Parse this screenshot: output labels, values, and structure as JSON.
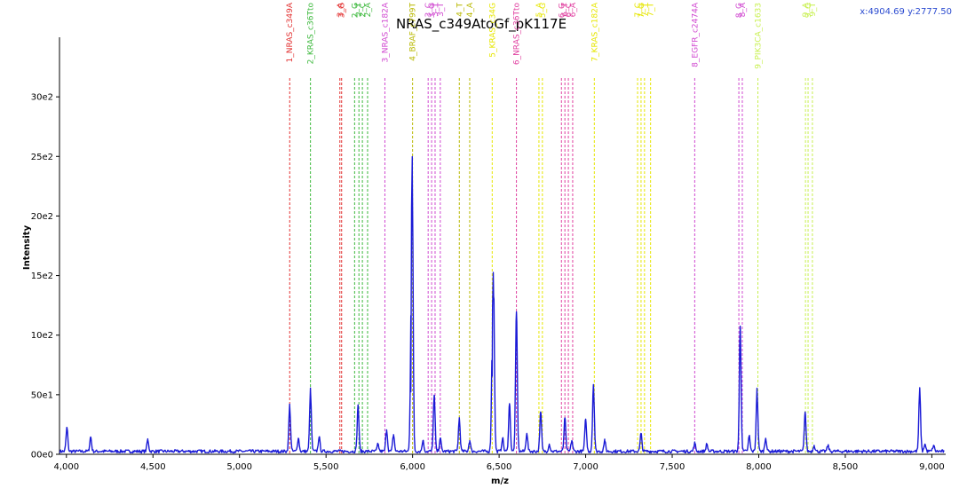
{
  "chart_data": {
    "type": "line",
    "title": "NRAS_c349AtoGf_pK117E",
    "xlabel": "m/z",
    "ylabel": "Intensity",
    "xlim": [
      3960,
      9080
    ],
    "ylim": [
      0,
      3500
    ],
    "x_ticks": [
      4000,
      4500,
      5000,
      5500,
      6000,
      6500,
      7000,
      7500,
      8000,
      8500,
      9000
    ],
    "x_tick_labels": [
      "4,000",
      "4,500",
      "5,000",
      "5,500",
      "6,000",
      "6,500",
      "7,000",
      "7,500",
      "8,000",
      "8,500",
      "9,000"
    ],
    "y_ticks": [
      0,
      500,
      1000,
      1500,
      2000,
      2500,
      3000
    ],
    "y_tick_labels": [
      "00e0",
      "50e1",
      "10e2",
      "15e2",
      "20e2",
      "25e2",
      "30e2"
    ],
    "cursor_readout": "x:4904.69 y:2777.50",
    "line_color": "#1a1ad6",
    "baseline": 25,
    "peaks": [
      {
        "x": 4003,
        "y": 200
      },
      {
        "x": 4140,
        "y": 120
      },
      {
        "x": 4470,
        "y": 100
      },
      {
        "x": 5290,
        "y": 390
      },
      {
        "x": 5340,
        "y": 110
      },
      {
        "x": 5410,
        "y": 520
      },
      {
        "x": 5460,
        "y": 120
      },
      {
        "x": 5685,
        "y": 390
      },
      {
        "x": 5800,
        "y": 60
      },
      {
        "x": 5850,
        "y": 180
      },
      {
        "x": 5890,
        "y": 140
      },
      {
        "x": 5990,
        "y": 500
      },
      {
        "x": 5998,
        "y": 2330
      },
      {
        "x": 6060,
        "y": 90
      },
      {
        "x": 6125,
        "y": 470
      },
      {
        "x": 6160,
        "y": 110
      },
      {
        "x": 6270,
        "y": 280
      },
      {
        "x": 6330,
        "y": 90
      },
      {
        "x": 6460,
        "y": 630
      },
      {
        "x": 6468,
        "y": 1300
      },
      {
        "x": 6520,
        "y": 110
      },
      {
        "x": 6560,
        "y": 400
      },
      {
        "x": 6600,
        "y": 1170
      },
      {
        "x": 6660,
        "y": 150
      },
      {
        "x": 6740,
        "y": 330
      },
      {
        "x": 6790,
        "y": 60
      },
      {
        "x": 6880,
        "y": 280
      },
      {
        "x": 6920,
        "y": 90
      },
      {
        "x": 7000,
        "y": 270
      },
      {
        "x": 7045,
        "y": 560
      },
      {
        "x": 7110,
        "y": 90
      },
      {
        "x": 7320,
        "y": 150
      },
      {
        "x": 7630,
        "y": 70
      },
      {
        "x": 7700,
        "y": 60
      },
      {
        "x": 7893,
        "y": 1050
      },
      {
        "x": 7945,
        "y": 130
      },
      {
        "x": 7990,
        "y": 520
      },
      {
        "x": 8040,
        "y": 110
      },
      {
        "x": 8268,
        "y": 330
      },
      {
        "x": 8320,
        "y": 50
      },
      {
        "x": 8400,
        "y": 50
      },
      {
        "x": 8930,
        "y": 530
      },
      {
        "x": 8960,
        "y": 60
      },
      {
        "x": 9010,
        "y": 50
      }
    ],
    "markers": [
      {
        "x": 5290,
        "label": "1_NRAS_c349A",
        "color": "#e23030"
      },
      {
        "x": 5410,
        "label": "2_KRAS_c36Tto",
        "color": "#3cb83c"
      },
      {
        "x": 5580,
        "label": "3_A",
        "color": "#e23030"
      },
      {
        "x": 5590,
        "label": "3_G",
        "color": "#e23030"
      },
      {
        "x": 5665,
        "label": "2_G",
        "color": "#3cb83c"
      },
      {
        "x": 5690,
        "label": "2_T",
        "color": "#3cb83c"
      },
      {
        "x": 5710,
        "label": "2_C",
        "color": "#3cb83c"
      },
      {
        "x": 5740,
        "label": "2_A",
        "color": "#3cb83c"
      },
      {
        "x": 5840,
        "label": "3_NRAS_c182A",
        "color": "#d048d0"
      },
      {
        "x": 6000,
        "label": "4_BRAF_c799T",
        "color": "#b8b800"
      },
      {
        "x": 6090,
        "label": "3_C",
        "color": "#d048d0"
      },
      {
        "x": 6110,
        "label": "3_G",
        "color": "#d048d0"
      },
      {
        "x": 6130,
        "label": "3_T",
        "color": "#d048d0"
      },
      {
        "x": 6160,
        "label": "3_T",
        "color": "#d048d0"
      },
      {
        "x": 6270,
        "label": "4_T",
        "color": "#b8b800"
      },
      {
        "x": 6330,
        "label": "4_A",
        "color": "#b8b800"
      },
      {
        "x": 6460,
        "label": "5_KRAS_c34G",
        "color": "#e6e600"
      },
      {
        "x": 6600,
        "label": "6_NRAS_c36Tto",
        "color": "#e040a0"
      },
      {
        "x": 6730,
        "label": "5_A",
        "color": "#e6e600"
      },
      {
        "x": 6750,
        "label": "5_G",
        "color": "#e6e600"
      },
      {
        "x": 6860,
        "label": "6_G",
        "color": "#e040a0"
      },
      {
        "x": 6880,
        "label": "6_T",
        "color": "#e040a0"
      },
      {
        "x": 6900,
        "label": "6_C",
        "color": "#e040a0"
      },
      {
        "x": 6925,
        "label": "6_A",
        "color": "#e040a0"
      },
      {
        "x": 7050,
        "label": "7_KRAS_c182A",
        "color": "#e6e600"
      },
      {
        "x": 7300,
        "label": "7_C",
        "color": "#e6e600"
      },
      {
        "x": 7320,
        "label": "7_G",
        "color": "#e6e600"
      },
      {
        "x": 7340,
        "label": "7_T",
        "color": "#e6e600"
      },
      {
        "x": 7375,
        "label": "7_T",
        "color": "#e6e600"
      },
      {
        "x": 7630,
        "label": "8_EGFR_c2474A",
        "color": "#d048d0"
      },
      {
        "x": 7885,
        "label": "8_G",
        "color": "#d048d0"
      },
      {
        "x": 7905,
        "label": "8_A",
        "color": "#d048d0"
      },
      {
        "x": 7995,
        "label": "9_PIK3CA_c1633",
        "color": "#c8f050"
      },
      {
        "x": 8270,
        "label": "9_A",
        "color": "#c8f050"
      },
      {
        "x": 8285,
        "label": "9_G",
        "color": "#c8f050"
      },
      {
        "x": 8310,
        "label": "9_T",
        "color": "#c8f050"
      }
    ]
  }
}
